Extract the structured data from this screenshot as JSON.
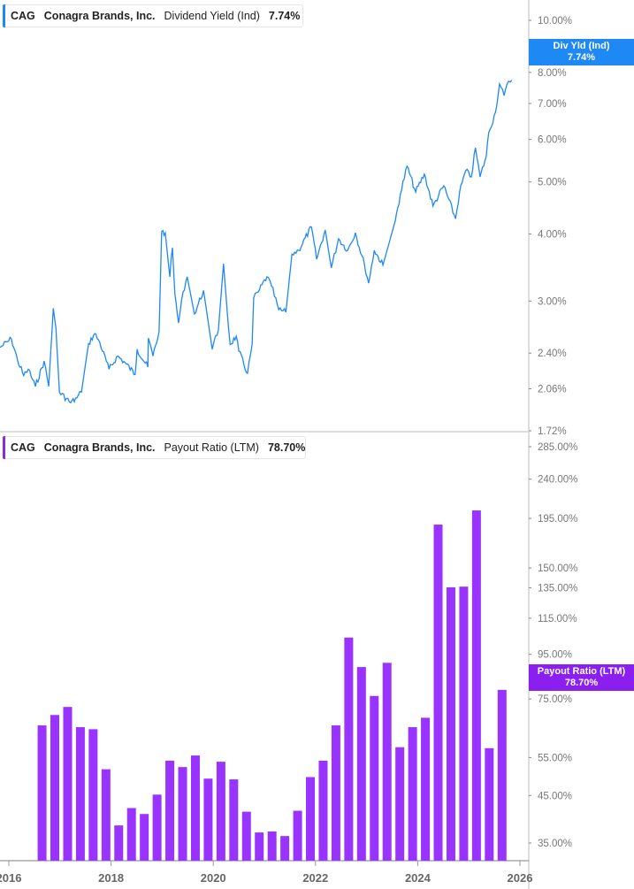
{
  "colors": {
    "dividend_yield": "#1e88f5",
    "payout_ratio": "#9933ff",
    "axis": "#999999",
    "tick_text": "#777777"
  },
  "legends": [
    {
      "ticker": "CAG",
      "company": "Conagra Brands, Inc.",
      "metric": "Dividend Yield (Ind)",
      "value": "7.74%"
    },
    {
      "ticker": "CAG",
      "company": "Conagra Brands, Inc.",
      "metric": "Payout Ratio (LTM)",
      "value": "78.70%"
    }
  ],
  "tags": [
    {
      "label": "Div Yld (Ind)",
      "value": "7.74%"
    },
    {
      "label": "Payout Ratio (LTM)",
      "value": "78.70%"
    }
  ],
  "chart_data": [
    {
      "type": "line",
      "series": [
        {
          "name": "Dividend Yield (Ind)",
          "unit": "%",
          "x": [
            2015.83,
            2016.05,
            2016.17,
            2016.29,
            2016.38,
            2016.52,
            2016.69,
            2016.78,
            2016.87,
            2016.92,
            2016.99,
            2017.21,
            2017.33,
            2017.42,
            2017.56,
            2017.68,
            2017.78,
            2017.96,
            2018.13,
            2018.3,
            2018.47,
            2018.51,
            2018.72,
            2018.73,
            2018.82,
            2018.94,
            2018.99,
            2019.06,
            2019.15,
            2019.2,
            2019.25,
            2019.32,
            2019.41,
            2019.49,
            2019.63,
            2019.81,
            2019.98,
            2020.1,
            2020.2,
            2020.27,
            2020.33,
            2020.45,
            2020.5,
            2020.67,
            2020.76,
            2020.79,
            2020.88,
            2021.05,
            2021.14,
            2021.28,
            2021.42,
            2021.54,
            2021.67,
            2021.92,
            2022.02,
            2022.19,
            2022.31,
            2022.45,
            2022.63,
            2022.78,
            2022.96,
            2023.04,
            2023.15,
            2023.32,
            2023.56,
            2023.66,
            2023.79,
            2023.96,
            2024.13,
            2024.3,
            2024.51,
            2024.74,
            2024.82,
            2024.94,
            2025.05,
            2025.13,
            2025.22,
            2025.34,
            2025.39,
            2025.52,
            2025.6,
            2025.69,
            2025.78,
            2025.84
          ],
          "y": [
            2.46,
            2.55,
            2.33,
            2.18,
            2.24,
            2.08,
            2.32,
            2.08,
            2.91,
            2.68,
            2.03,
            1.94,
            1.98,
            2.03,
            2.5,
            2.61,
            2.51,
            2.24,
            2.37,
            2.29,
            2.19,
            2.44,
            2.26,
            2.56,
            2.37,
            2.63,
            4.04,
            4.02,
            3.33,
            3.77,
            3.09,
            2.73,
            3.12,
            3.33,
            2.84,
            3.14,
            2.44,
            2.65,
            3.52,
            2.89,
            2.49,
            2.58,
            2.42,
            2.2,
            2.49,
            3.04,
            3.12,
            3.33,
            3.2,
            2.89,
            2.86,
            3.67,
            3.73,
            4.12,
            3.59,
            4.07,
            3.46,
            3.92,
            3.73,
            4.02,
            3.5,
            3.24,
            3.73,
            3.5,
            4.23,
            4.74,
            5.35,
            4.79,
            5.17,
            4.51,
            4.92,
            4.27,
            4.79,
            5.25,
            5.11,
            5.79,
            5.11,
            5.58,
            6.18,
            6.74,
            7.61,
            7.24,
            7.7,
            7.74
          ]
        }
      ],
      "yscale": "log",
      "ylim": [
        1.72,
        11.0
      ],
      "yticks": [
        "10.00%",
        "8.00%",
        "7.00%",
        "6.00%",
        "5.00%",
        "4.00%",
        "3.00%",
        "2.40%",
        "2.06%",
        "1.72%"
      ],
      "ytick_values": [
        10,
        8,
        7,
        6,
        5,
        4,
        3,
        2.4,
        2.06,
        1.72
      ],
      "y_axis_side": "right",
      "grid": false
    },
    {
      "type": "bar",
      "series": [
        {
          "name": "Payout Ratio (LTM)",
          "unit": "%",
          "x": [
            2016.65,
            2016.9,
            2017.15,
            2017.4,
            2017.65,
            2017.9,
            2018.15,
            2018.4,
            2018.65,
            2018.9,
            2019.15,
            2019.4,
            2019.65,
            2019.9,
            2020.15,
            2020.4,
            2020.65,
            2020.9,
            2021.15,
            2021.4,
            2021.65,
            2021.9,
            2022.15,
            2022.4,
            2022.65,
            2022.9,
            2023.15,
            2023.4,
            2023.65,
            2023.9,
            2024.15,
            2024.4,
            2024.65,
            2024.9,
            2025.15,
            2025.4,
            2025.65
          ],
          "values": [
            65.2,
            68.9,
            71.9,
            64.6,
            63.9,
            51.7,
            38.4,
            42.1,
            40.8,
            45.2,
            54.1,
            52.3,
            55.6,
            49.2,
            53.8,
            49.0,
            41.3,
            37.0,
            37.2,
            36.3,
            41.5,
            49.6,
            54.1,
            65.2,
            103.8,
            88.8,
            76.2,
            90.8,
            58.1,
            64.6,
            67.9,
            188.7,
            135.4,
            135.9,
            203.4,
            57.8,
            78.7
          ]
        }
      ],
      "yscale": "log",
      "ylim": [
        31.8,
        285
      ],
      "yticks": [
        "285.00%",
        "240.00%",
        "195.00%",
        "150.00%",
        "135.00%",
        "115.00%",
        "95.00%",
        "75.00%",
        "55.00%",
        "45.00%",
        "35.00%"
      ],
      "ytick_values": [
        285,
        240,
        195,
        150,
        135,
        115,
        95,
        75,
        55,
        45,
        35
      ],
      "y_axis_side": "right",
      "xticks": [
        "2016",
        "2018",
        "2020",
        "2022",
        "2024",
        "2026"
      ],
      "xtick_values": [
        2016,
        2018,
        2020,
        2022,
        2024,
        2026
      ],
      "xlim": [
        2015.83,
        2026.15
      ],
      "grid": false
    }
  ]
}
